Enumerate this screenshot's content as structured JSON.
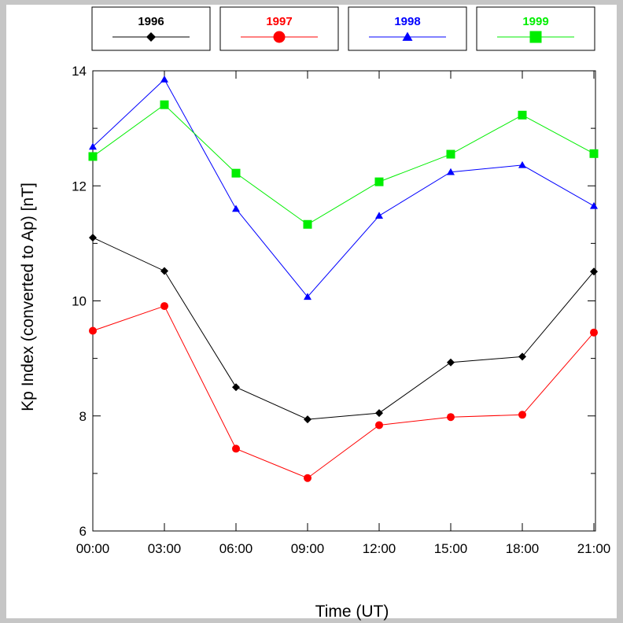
{
  "chart_data": {
    "type": "line",
    "title": "",
    "xlabel": "Time (UT)",
    "ylabel": "Kp Index (converted to Ap) [nT]",
    "categories": [
      "00:00",
      "03:00",
      "06:00",
      "09:00",
      "12:00",
      "15:00",
      "18:00",
      "21:00"
    ],
    "ylim": [
      6,
      14
    ],
    "y_major_ticks": [
      6,
      8,
      10,
      12,
      14
    ],
    "y_minor_ticks": [
      7,
      9,
      11,
      13
    ],
    "grid": false,
    "legend_position": "top",
    "series": [
      {
        "name": "1996",
        "color": "#000000",
        "marker": "diamond",
        "values": [
          11.1,
          10.52,
          8.5,
          7.94,
          8.05,
          8.93,
          9.03,
          10.51
        ]
      },
      {
        "name": "1997",
        "color": "#ff0000",
        "marker": "circle",
        "values": [
          9.48,
          9.91,
          7.43,
          6.92,
          7.84,
          7.98,
          8.02,
          9.45
        ]
      },
      {
        "name": "1998",
        "color": "#0000ff",
        "marker": "triangle",
        "values": [
          12.68,
          13.85,
          11.6,
          10.07,
          11.48,
          12.24,
          12.36,
          11.65
        ]
      },
      {
        "name": "1999",
        "color": "#00ee00",
        "marker": "square",
        "values": [
          12.51,
          13.41,
          12.22,
          11.33,
          12.07,
          12.55,
          13.23,
          12.56
        ]
      }
    ]
  }
}
